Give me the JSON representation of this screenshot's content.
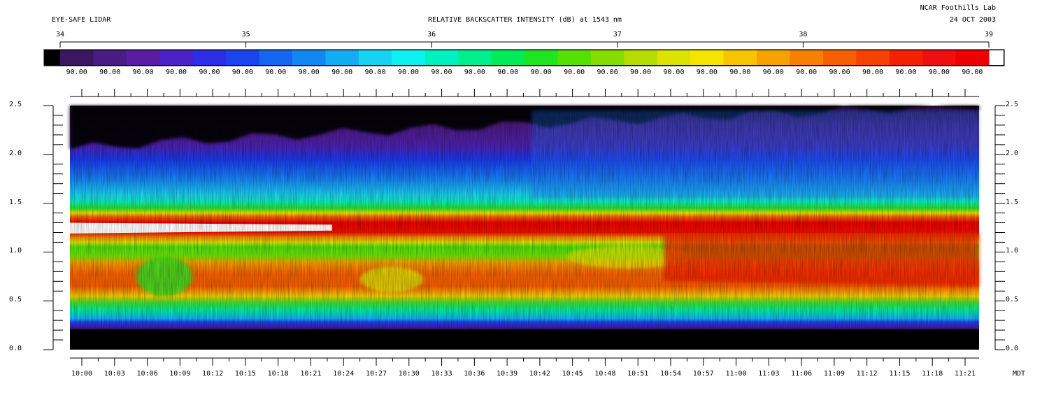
{
  "header": {
    "left_title": "EYE-SAFE LIDAR",
    "center_title": "RELATIVE BACKSCATTER INTENSITY (dB) at 1543 nm",
    "org": "NCAR Foothills Lab",
    "date": "24 OCT 2003"
  },
  "colorbar": {
    "scale_ticks": [
      "34",
      "35",
      "36",
      "37",
      "38",
      "39"
    ],
    "box_label": "90.00",
    "box_count": 28,
    "palette": [
      "#3a1760",
      "#4a1a85",
      "#5a1ca5",
      "#4a22c8",
      "#2b2ee6",
      "#1a44ef",
      "#1466f2",
      "#1088f4",
      "#12acf4",
      "#17d2f2",
      "#0ff1f0",
      "#00f0c2",
      "#00ee8e",
      "#00ea5a",
      "#1ee51e",
      "#55e000",
      "#86dc00",
      "#b4dc00",
      "#dde200",
      "#f4e400",
      "#f8c400",
      "#f8a000",
      "#f88000",
      "#f66000",
      "#f44200",
      "#f22200",
      "#ee1010",
      "#ec0000"
    ]
  },
  "chart_data": {
    "type": "heatmap",
    "title": "RELATIVE BACKSCATTER INTENSITY (dB) at 1543 nm",
    "xlabel": "MDT",
    "ylabel": "",
    "x_ticks": [
      "10:00",
      "10:03",
      "10:06",
      "10:09",
      "10:12",
      "10:15",
      "10:18",
      "10:21",
      "10:24",
      "10:27",
      "10:30",
      "10:33",
      "10:36",
      "10:39",
      "10:42",
      "10:45",
      "10:48",
      "10:51",
      "10:54",
      "10:57",
      "11:00",
      "11:03",
      "11:06",
      "11:09",
      "11:12",
      "11:15",
      "11:18",
      "11:21"
    ],
    "y_ticks": [
      "0.0",
      "0.5",
      "1.0",
      "1.5",
      "2.0",
      "2.5"
    ],
    "ylim": [
      0,
      2.5
    ],
    "colorbar_range": [
      34,
      39
    ],
    "layers_km": {
      "noise_floor_top": 0.22,
      "ground_blue_band": [
        0.22,
        0.3
      ],
      "boundary_layer_red": [
        0.5,
        0.95
      ],
      "elevated_layer_red": [
        1.15,
        1.35
      ],
      "saturated_white_core": [
        1.2,
        1.33
      ],
      "saturated_core_ends": "10:22",
      "noise_top_start": 2.05,
      "noise_top_end": 2.5
    }
  }
}
